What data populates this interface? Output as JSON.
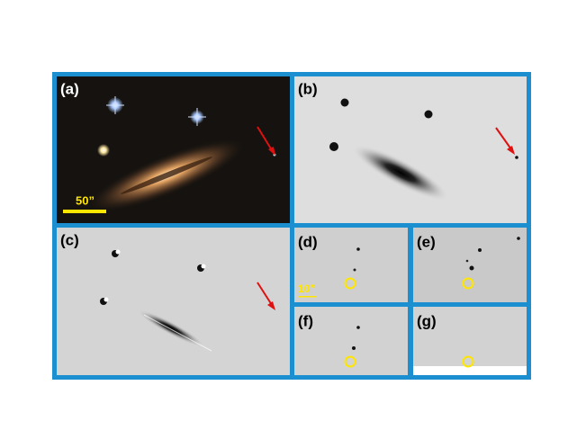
{
  "panels": [
    {
      "label": "(a)",
      "scale_bar": "50”"
    },
    {
      "label": "(b)"
    },
    {
      "label": "(c)"
    },
    {
      "label": "(d)",
      "scale_bar": "10”"
    },
    {
      "label": "(e)"
    },
    {
      "label": "(f)"
    },
    {
      "label": "(g)"
    }
  ]
}
